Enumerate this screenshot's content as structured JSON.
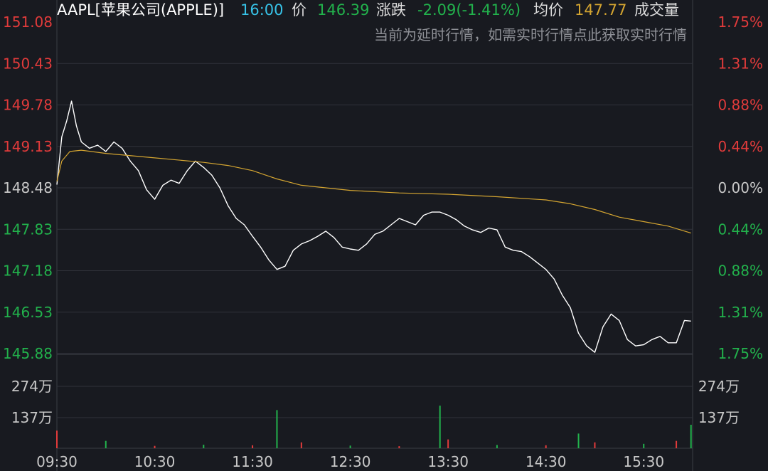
{
  "header": {
    "title": "AAPL[苹果公司(APPLE)]",
    "time": "16:00",
    "price_label": "价",
    "price": "146.39",
    "change_label": "涨跌",
    "change": "-2.09(-1.41%)",
    "avg_label": "均价",
    "avg": "147.77",
    "volume_label": "成交量"
  },
  "notice": "当前为延时行情，如需实时行情点此获取实时行情",
  "colors": {
    "background": "#181a20",
    "up": "#e23b3b",
    "down": "#22b24c",
    "neutral": "#c8c8c8",
    "price_line": "#ffffff",
    "avg_line": "#d4a531",
    "time_text": "#37c3e8"
  },
  "chart_data": [
    {
      "type": "line",
      "title": "",
      "reference_price": 148.48,
      "ylim": [
        145.88,
        151.08
      ],
      "y_ticks": [
        "151.08",
        "150.43",
        "149.78",
        "149.13",
        "148.48",
        "147.83",
        "147.18",
        "146.53",
        "145.88"
      ],
      "y_ticks_right": [
        "1.75%",
        "1.31%",
        "0.88%",
        "0.44%",
        "0.00%",
        "0.44%",
        "0.88%",
        "1.31%",
        "1.75%"
      ],
      "x_ticks": [
        "09:30",
        "10:30",
        "11:30",
        "12:30",
        "13:30",
        "14:30",
        "15:30"
      ],
      "grid": true,
      "series": [
        {
          "key": "price",
          "x": [
            "09:30",
            "09:33",
            "09:36",
            "09:39",
            "09:42",
            "09:45",
            "09:50",
            "09:55",
            "10:00",
            "10:05",
            "10:10",
            "10:15",
            "10:20",
            "10:25",
            "10:30",
            "10:35",
            "10:40",
            "10:45",
            "10:50",
            "10:55",
            "11:00",
            "11:05",
            "11:10",
            "11:15",
            "11:20",
            "11:25",
            "11:30",
            "11:35",
            "11:40",
            "11:45",
            "11:50",
            "11:55",
            "12:00",
            "12:05",
            "12:10",
            "12:15",
            "12:20",
            "12:25",
            "12:30",
            "12:35",
            "12:40",
            "12:45",
            "12:50",
            "12:55",
            "13:00",
            "13:05",
            "13:10",
            "13:15",
            "13:20",
            "13:25",
            "13:30",
            "13:35",
            "13:40",
            "13:45",
            "13:50",
            "13:55",
            "14:00",
            "14:05",
            "14:10",
            "14:15",
            "14:20",
            "14:25",
            "14:30",
            "14:35",
            "14:40",
            "14:45",
            "14:50",
            "14:55",
            "15:00",
            "15:05",
            "15:10",
            "15:15",
            "15:20",
            "15:25",
            "15:30",
            "15:35",
            "15:40",
            "15:45",
            "15:50",
            "15:55",
            "15:59"
          ],
          "values": [
            148.53,
            149.28,
            149.53,
            149.84,
            149.45,
            149.2,
            149.1,
            149.15,
            149.05,
            149.2,
            149.1,
            148.9,
            148.75,
            148.45,
            148.3,
            148.52,
            148.6,
            148.55,
            148.75,
            148.9,
            148.8,
            148.68,
            148.48,
            148.2,
            148.0,
            147.9,
            147.72,
            147.55,
            147.35,
            147.2,
            147.25,
            147.5,
            147.6,
            147.65,
            147.72,
            147.8,
            147.7,
            147.55,
            147.52,
            147.5,
            147.6,
            147.75,
            147.8,
            147.9,
            148.0,
            147.95,
            147.9,
            148.05,
            148.1,
            148.1,
            148.05,
            147.98,
            147.88,
            147.82,
            147.78,
            147.85,
            147.82,
            147.55,
            147.5,
            147.48,
            147.4,
            147.3,
            147.2,
            147.05,
            146.8,
            146.6,
            146.2,
            146.0,
            145.9,
            146.3,
            146.5,
            146.4,
            146.1,
            146.0,
            146.02,
            146.1,
            146.15,
            146.05,
            146.05,
            146.4,
            146.39
          ]
        },
        {
          "key": "average",
          "x": [
            "09:30",
            "09:33",
            "09:38",
            "09:45",
            "10:00",
            "10:30",
            "11:00",
            "11:15",
            "11:30",
            "11:45",
            "12:00",
            "12:30",
            "13:00",
            "13:30",
            "14:00",
            "14:30",
            "14:45",
            "15:00",
            "15:15",
            "15:30",
            "15:45",
            "15:59"
          ],
          "values": [
            148.58,
            148.9,
            149.05,
            149.07,
            149.02,
            148.95,
            148.88,
            148.83,
            148.75,
            148.62,
            148.52,
            148.44,
            148.4,
            148.38,
            148.34,
            148.29,
            148.23,
            148.14,
            148.02,
            147.95,
            147.88,
            147.77
          ]
        }
      ]
    },
    {
      "type": "bar",
      "title": "",
      "y_ticks": [
        "274万",
        "137万"
      ],
      "ylim": [
        0,
        3200000
      ],
      "x": [
        "09:30",
        "10:00",
        "10:30",
        "11:00",
        "11:30",
        "11:45",
        "12:00",
        "12:30",
        "13:00",
        "13:25",
        "13:30",
        "14:00",
        "14:30",
        "14:50",
        "15:00",
        "15:30",
        "15:50",
        "15:59"
      ],
      "values": [
        600000,
        250000,
        80000,
        120000,
        100000,
        1300000,
        200000,
        90000,
        70000,
        1450000,
        300000,
        110000,
        100000,
        500000,
        200000,
        150000,
        250000,
        800000
      ]
    }
  ]
}
